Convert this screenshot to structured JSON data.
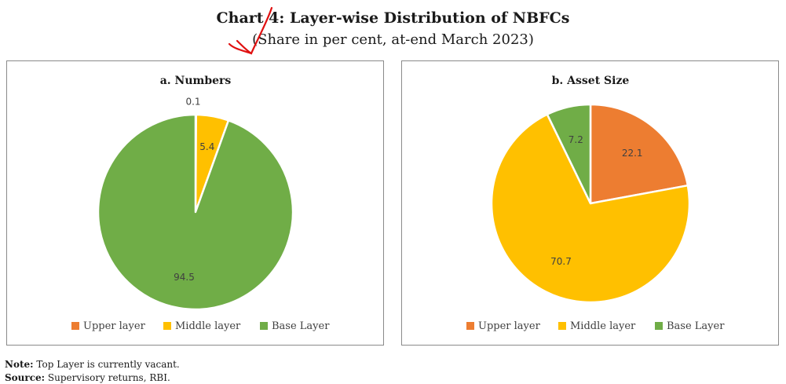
{
  "header": {
    "title": "Chart 4: Layer-wise Distribution of NBFCs",
    "subtitle": "(Share in per cent, at-end March 2023)"
  },
  "colors": {
    "upper": "#ED7D31",
    "middle": "#FFC000",
    "base": "#70AD47"
  },
  "chart_data": [
    {
      "type": "pie",
      "title": "a. Numbers",
      "series": [
        {
          "name": "Upper layer",
          "value": 0.1
        },
        {
          "name": "Middle layer",
          "value": 5.4
        },
        {
          "name": "Base Layer",
          "value": 94.5
        }
      ],
      "legend": "bottom"
    },
    {
      "type": "pie",
      "title": "b. Asset Size",
      "series": [
        {
          "name": "Upper layer",
          "value": 22.1
        },
        {
          "name": "Middle layer",
          "value": 70.7
        },
        {
          "name": "Base Layer",
          "value": 7.2
        }
      ],
      "legend": "bottom"
    }
  ],
  "footnotes": {
    "note_label": "Note:",
    "note_text": " Top Layer is currently vacant.",
    "source_label": "Source:",
    "source_text": " Supervisory returns, RBI."
  }
}
